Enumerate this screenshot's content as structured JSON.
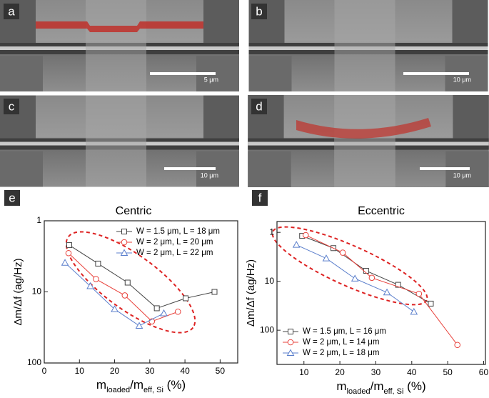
{
  "panels": [
    {
      "label": "a",
      "scale_bar": "5 μm"
    },
    {
      "label": "b",
      "scale_bar": "10 μm"
    },
    {
      "label": "c",
      "scale_bar": "10 μm"
    },
    {
      "label": "d",
      "scale_bar": "10 μm"
    }
  ],
  "plot_labels": [
    "e",
    "f"
  ],
  "chart_data": [
    {
      "type": "line",
      "title": "Centric",
      "xlabel": [
        "m",
        "loaded",
        "/m",
        "eff, Si",
        " (%)"
      ],
      "ylabel": "Δm/Δf (ag/Hz)",
      "xlim": [
        0,
        55
      ],
      "xticks": [
        0,
        10,
        20,
        30,
        40,
        50
      ],
      "ylim": [
        1,
        100
      ],
      "yticks": [
        1,
        10,
        100
      ],
      "ylog": true,
      "yreverse": true,
      "legend": "upper right",
      "series": [
        {
          "name": "W = 1.5 μm, L = 18 μm",
          "color": "#444444",
          "marker": "square",
          "x": [
            7.1,
            15.3,
            23.7,
            32,
            40.2,
            48.4
          ],
          "values": [
            2.2,
            4.0,
            7.4,
            17,
            12.3,
            10
          ]
        },
        {
          "name": "W = 2 μm, L = 20 μm",
          "color": "#e8403a",
          "marker": "circle",
          "x": [
            6.9,
            14.7,
            22.9,
            30.6,
            38
          ],
          "values": [
            2.85,
            6.6,
            11.2,
            26,
            19
          ]
        },
        {
          "name": "W = 2 μm, L = 22 μm",
          "color": "#5b7fcc",
          "marker": "triangle",
          "x": [
            5.9,
            13.1,
            20,
            27,
            34
          ],
          "values": [
            3.9,
            8.3,
            17.5,
            30,
            20
          ]
        }
      ]
    },
    {
      "type": "line",
      "title": "Eccentric",
      "xlabel": [
        "m",
        "loaded",
        "/m",
        "eff, Si",
        " (%)"
      ],
      "ylabel": "Δm/Δf (ag/Hz)",
      "xlim": [
        2.5,
        60.5
      ],
      "xticks": [
        10,
        20,
        30,
        40,
        50,
        60
      ],
      "ylim": [
        0.6,
        500
      ],
      "yticks": [
        1,
        10,
        100
      ],
      "ylog": true,
      "yreverse": true,
      "legend": "lower left",
      "series": [
        {
          "name": "W = 1.5 μm, L = 16 μm",
          "color": "#444444",
          "marker": "square",
          "x": [
            9.5,
            18.2,
            27.3,
            36.2,
            45.3
          ],
          "values": [
            1.18,
            2.1,
            6.1,
            11.8,
            28.6
          ]
        },
        {
          "name": "W = 2 μm, L = 14 μm",
          "color": "#e8403a",
          "marker": "circle",
          "x": [
            10.5,
            20.8,
            28.9,
            42,
            52.7
          ],
          "values": [
            1.14,
            2.6,
            8.5,
            18,
            200
          ]
        },
        {
          "name": "W = 2 μm, L = 18 μm",
          "color": "#5b7fcc",
          "marker": "triangle",
          "x": [
            7.9,
            16.2,
            24.2,
            33.1,
            40.6
          ],
          "values": [
            1.8,
            3.4,
            8.8,
            16.9,
            42
          ]
        }
      ]
    }
  ]
}
